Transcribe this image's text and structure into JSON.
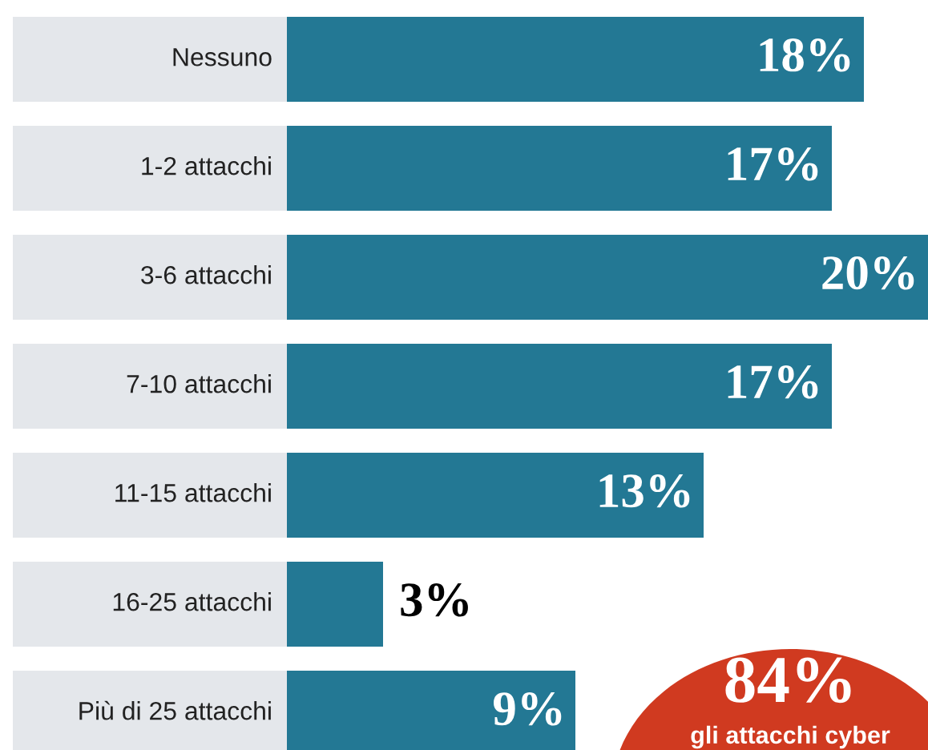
{
  "chart_data": {
    "type": "bar",
    "orientation": "horizontal",
    "categories": [
      "Nessuno",
      "1-2 attacchi",
      "3-6 attacchi",
      "7-10 attacchi",
      "11-15 attacchi",
      "16-25 attacchi",
      "Più di 25 attacchi"
    ],
    "values": [
      18,
      17,
      20,
      17,
      13,
      3,
      9
    ],
    "value_labels": [
      "18%",
      "17%",
      "20%",
      "17%",
      "13%",
      "3%",
      "9%"
    ],
    "color": "#237894",
    "annotations": [
      "84%",
      "gli attacchi cyber"
    ]
  }
}
